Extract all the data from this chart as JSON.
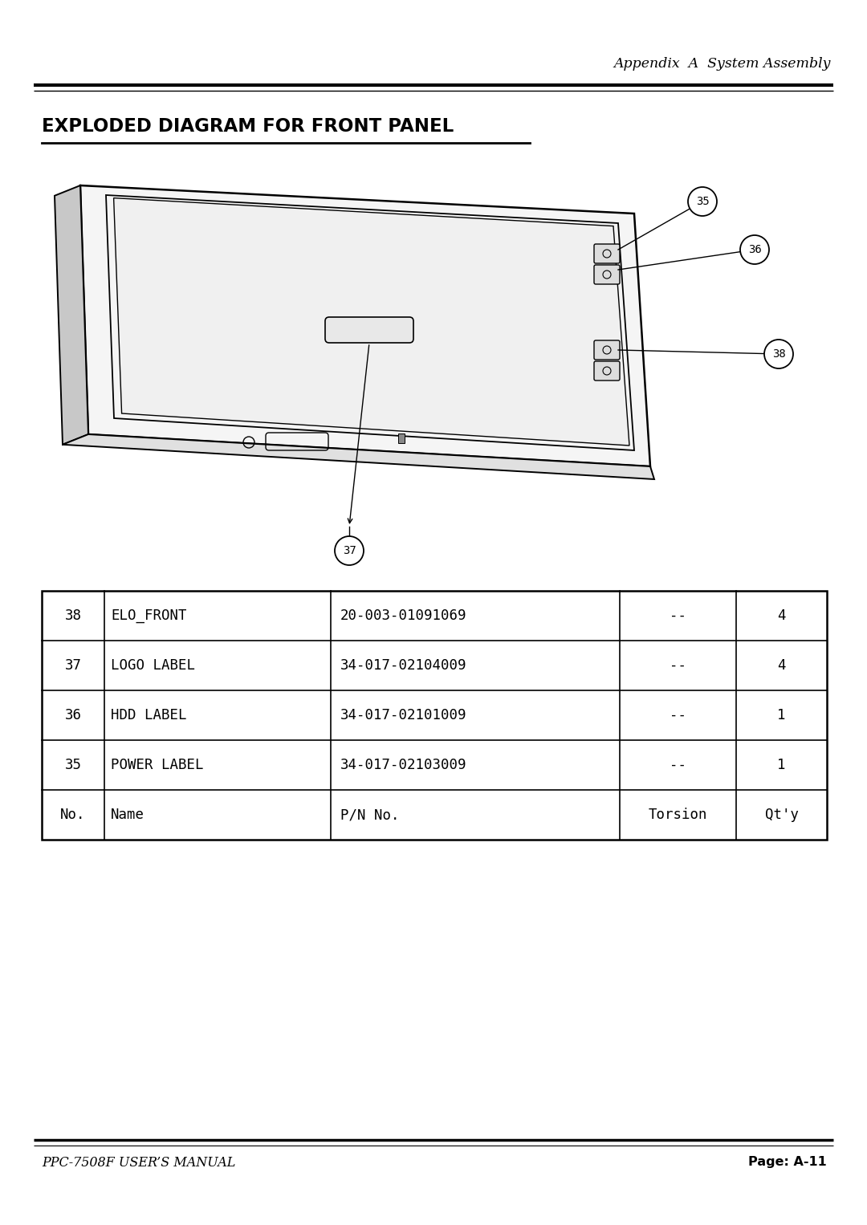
{
  "page_title": "Appendix  A  System Assembly",
  "section_title": "EXPLODED DIAGRAM FOR FRONT PANEL",
  "table_rows": [
    {
      "no": "38",
      "name": "ELO_FRONT",
      "pn": "20-003-01091069",
      "torsion": "--",
      "qty": "4"
    },
    {
      "no": "37",
      "name": "LOGO LABEL",
      "pn": "34-017-02104009",
      "torsion": "--",
      "qty": "4"
    },
    {
      "no": "36",
      "name": "HDD LABEL",
      "pn": "34-017-02101009",
      "torsion": "--",
      "qty": "1"
    },
    {
      "no": "35",
      "name": "POWER LABEL",
      "pn": "34-017-02103009",
      "torsion": "--",
      "qty": "1"
    },
    {
      "no": "No.",
      "name": "Name",
      "pn": "P/N No.",
      "torsion": "Torsion",
      "qty": "Qt'y"
    }
  ],
  "footer_left": "PPC-7508F USER’S MANUAL",
  "footer_right": "Page: A-11",
  "bg_color": "#ffffff",
  "text_color": "#000000"
}
